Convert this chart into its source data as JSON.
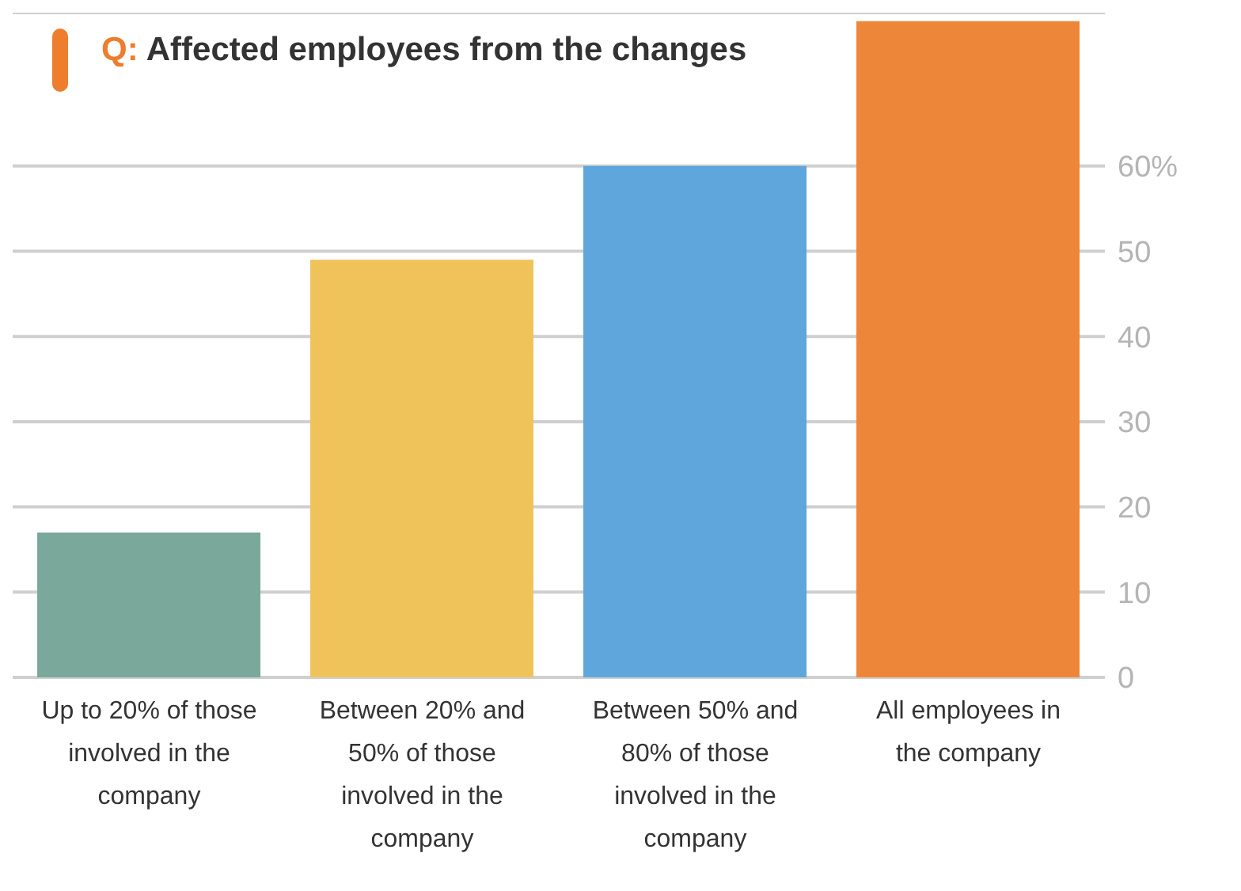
{
  "chart_data": {
    "type": "bar",
    "title": "Q: Affected employees from the changes",
    "categories": [
      "Up to 20% of those involved in the company",
      "Between 20% and 50% of those involved in the company",
      "Between 50% and 80% of those involved in the company",
      "All employees in the company"
    ],
    "values": [
      17,
      49,
      60,
      77
    ],
    "colors": [
      "#7aa89a",
      "#f0c35a",
      "#5ea6dc",
      "#ee863a"
    ],
    "ylim": [
      0,
      78
    ],
    "yticks": [
      0,
      10,
      20,
      30,
      40,
      50,
      {
        "value": 60,
        "label": "60%"
      }
    ],
    "grid": "y"
  }
}
